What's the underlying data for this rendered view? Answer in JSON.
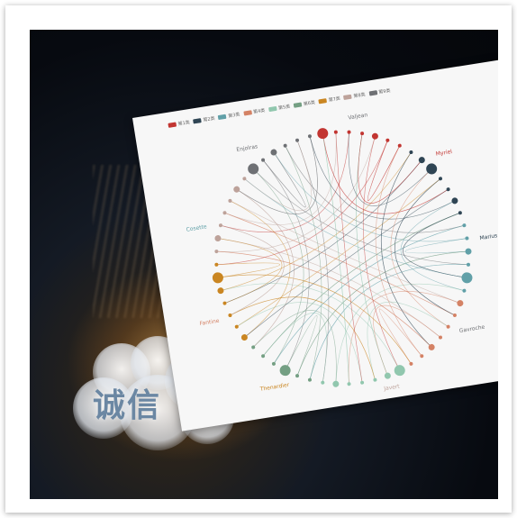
{
  "cloud_text": "诚信",
  "legend": [
    {
      "label": "第1类",
      "color": "#c23531"
    },
    {
      "label": "第2类",
      "color": "#2f4554"
    },
    {
      "label": "第3类",
      "color": "#61a0a8"
    },
    {
      "label": "第4类",
      "color": "#d48265"
    },
    {
      "label": "第5类",
      "color": "#91c7ae"
    },
    {
      "label": "第6类",
      "color": "#749f83"
    },
    {
      "label": "第7类",
      "color": "#ca8622"
    },
    {
      "label": "第8类",
      "color": "#bda29a"
    },
    {
      "label": "第9类",
      "color": "#6e7074"
    }
  ],
  "nodes": [
    {
      "label": "Valjean",
      "color": "#6e7074",
      "size": 3
    },
    {
      "label": "Myriel",
      "color": "#c23531",
      "size": 2
    },
    {
      "label": "Marius",
      "color": "#2f4554",
      "size": 8
    },
    {
      "label": "Gavroche",
      "color": "#6e7074",
      "size": 6
    },
    {
      "label": "Javert",
      "color": "#bda29a",
      "size": 4
    },
    {
      "label": "Thenardier",
      "color": "#ca8622",
      "size": 3
    },
    {
      "label": "Fantine",
      "color": "#d48265",
      "size": 3
    },
    {
      "label": "Cosette",
      "color": "#61a0a8",
      "size": 4
    },
    {
      "label": "Enjolras",
      "color": "#6e7074",
      "size": 3
    }
  ],
  "colors": {
    "background_dark": "#070a10",
    "chart_bg": "#f7f7f7",
    "glow": "#ffbe64"
  }
}
